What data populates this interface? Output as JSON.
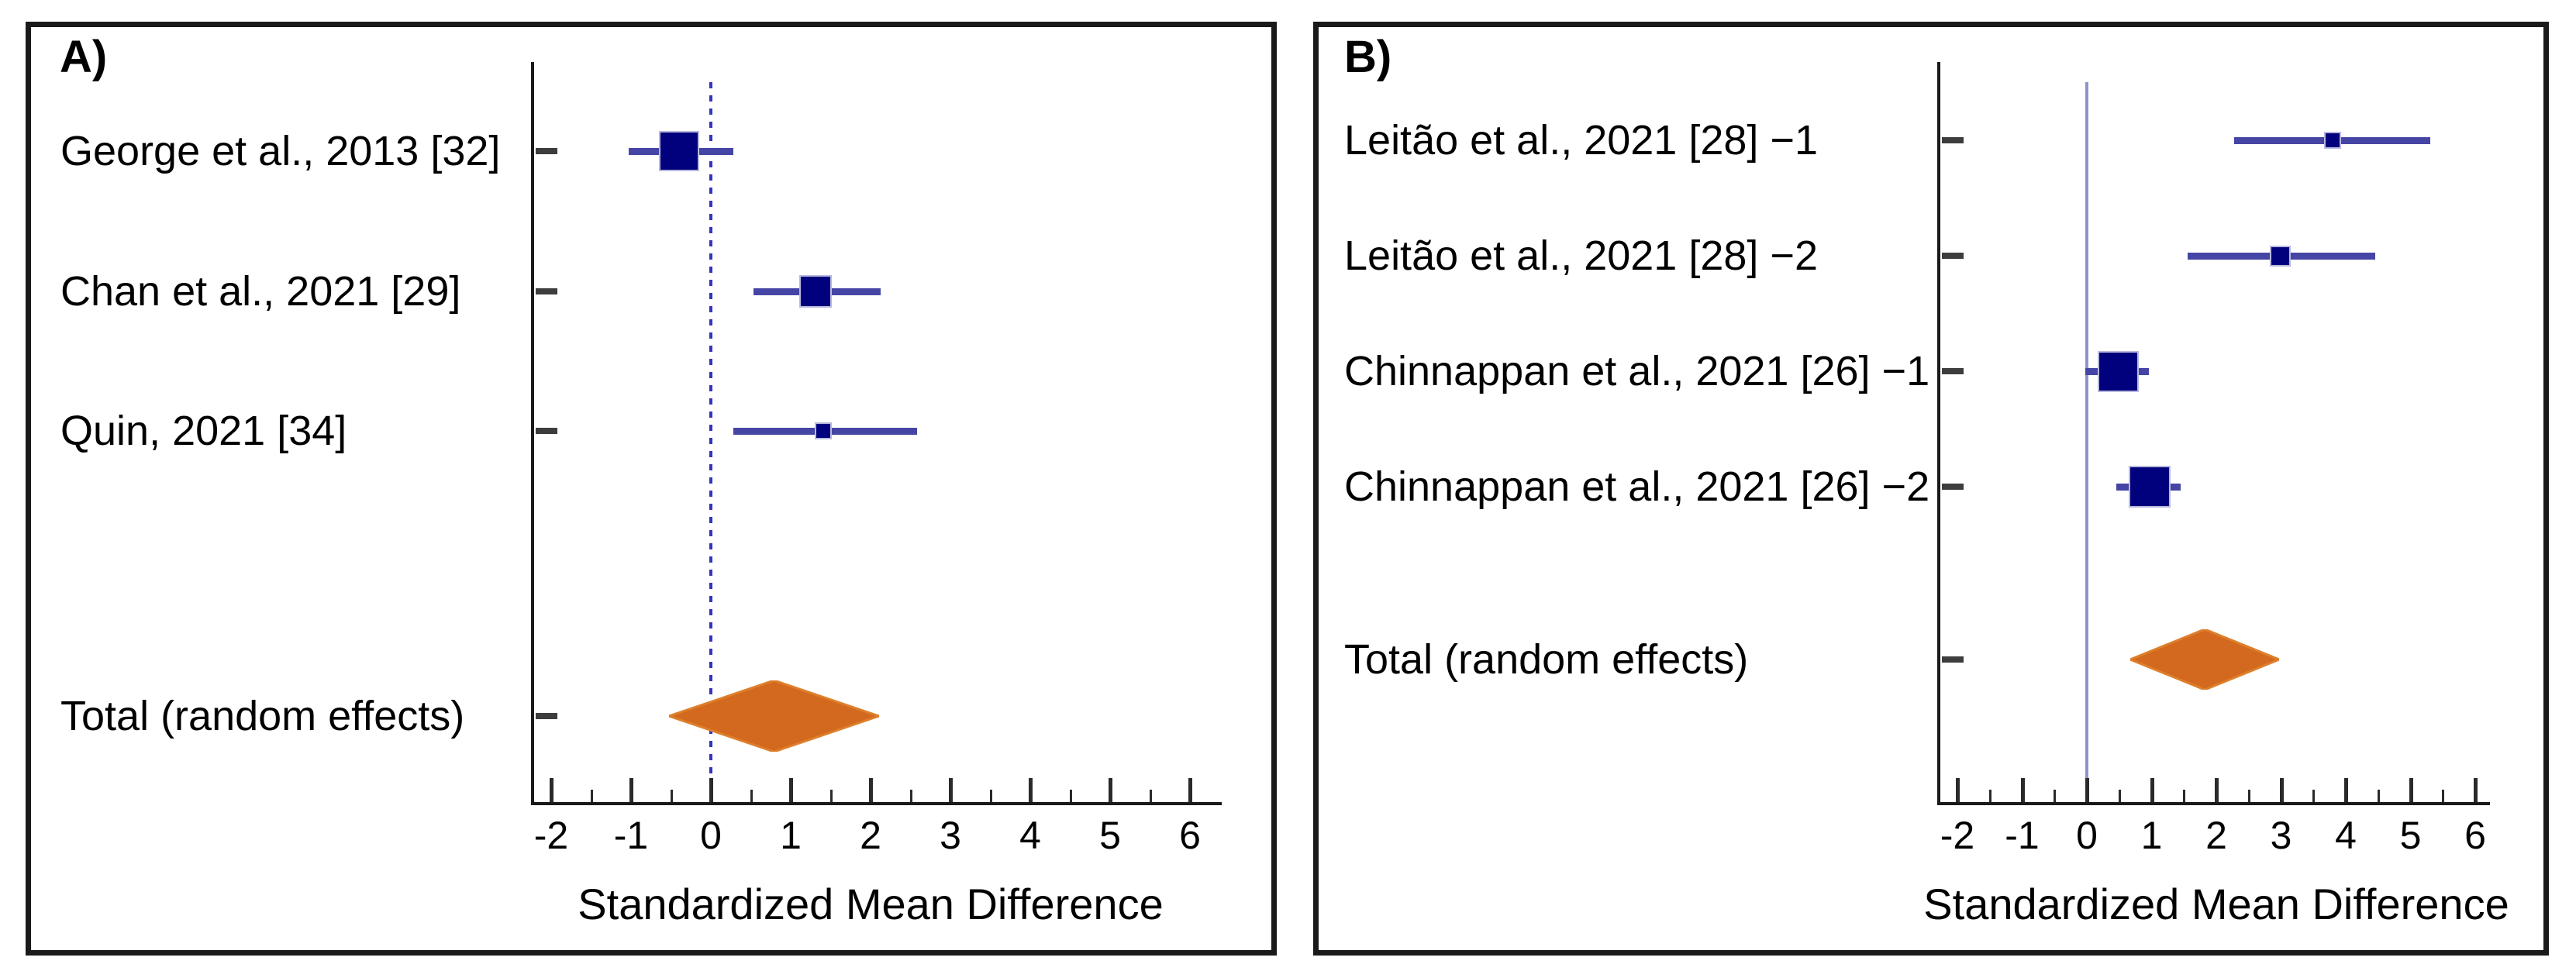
{
  "figure_title": "Forest plots of standardized mean differences",
  "colors": {
    "marker_square": "#01017d",
    "marker_square_edge": "#b9b9dd",
    "ci_line": "#4545a5",
    "diamond_fill": "#d2691e",
    "diamond_edge": "#dd7f2b",
    "reference_dotted": "#3434be",
    "reference_solid": "#9191cf",
    "axis": "#1a1a1a",
    "row_tick": "#3d3d3d",
    "frame": "#1a1a1a",
    "text": "#000000"
  },
  "chart_data": [
    {
      "type": "forest",
      "panel_label": "A)",
      "xlabel": "Standardized Mean Difference",
      "x_tick_labels": [
        "-2",
        "-1",
        "0",
        "1",
        "2",
        "3",
        "4",
        "5",
        "6"
      ],
      "x_tick_values": [
        -2,
        -1,
        0,
        1,
        2,
        3,
        4,
        5,
        6
      ],
      "x_minor_tick_values": [
        -1.5,
        -0.5,
        0.5,
        1.5,
        2.5,
        3.5,
        4.5,
        5.5
      ],
      "xlim": [
        -2.3,
        6.4
      ],
      "grid": false,
      "reference_line": {
        "x": 0,
        "style": "dotted"
      },
      "studies": [
        {
          "label": "George et al., 2013 [32]",
          "smd": -0.4,
          "ci_low": -1.03,
          "ci_high": 0.28,
          "marker_size": 52
        },
        {
          "label": "Chan et al., 2021 [29]",
          "smd": 1.31,
          "ci_low": 0.53,
          "ci_high": 2.13,
          "marker_size": 42
        },
        {
          "label": "Quin, 2021 [34]",
          "smd": 1.41,
          "ci_low": 0.28,
          "ci_high": 2.58,
          "marker_size": 22
        }
      ],
      "total": {
        "label": "Total (random effects)",
        "smd": 0.79,
        "ci_low": -0.52,
        "ci_high": 2.11
      }
    },
    {
      "type": "forest",
      "panel_label": "B)",
      "xlabel": "Standardized Mean Difference",
      "x_tick_labels": [
        "-2",
        "-1",
        "0",
        "1",
        "2",
        "3",
        "4",
        "5",
        "6"
      ],
      "x_tick_values": [
        -2,
        -1,
        0,
        1,
        2,
        3,
        4,
        5,
        6
      ],
      "x_minor_tick_values": [
        -1.5,
        -0.5,
        0.5,
        1.5,
        2.5,
        3.5,
        4.5,
        5.5
      ],
      "xlim": [
        -2.3,
        6.4
      ],
      "grid": false,
      "reference_line": {
        "x": 0,
        "style": "solid"
      },
      "studies": [
        {
          "label": "Leitão et al., 2021 [28] −1",
          "smd": 3.8,
          "ci_low": 2.28,
          "ci_high": 5.31,
          "marker_size": 22
        },
        {
          "label": "Leitão et al., 2021 [28] −2",
          "smd": 2.99,
          "ci_low": 1.56,
          "ci_high": 4.46,
          "marker_size": 27
        },
        {
          "label": "Chinnappan et al., 2021 [26] −1",
          "smd": 0.49,
          "ci_low": -0.02,
          "ci_high": 0.96,
          "marker_size": 53
        },
        {
          "label": "Chinnappan et al., 2021 [26] −2",
          "smd": 0.97,
          "ci_low": 0.46,
          "ci_high": 1.45,
          "marker_size": 54
        }
      ],
      "total": {
        "label": "Total (random effects)",
        "smd": 1.82,
        "ci_low": 0.67,
        "ci_high": 2.97
      }
    }
  ]
}
